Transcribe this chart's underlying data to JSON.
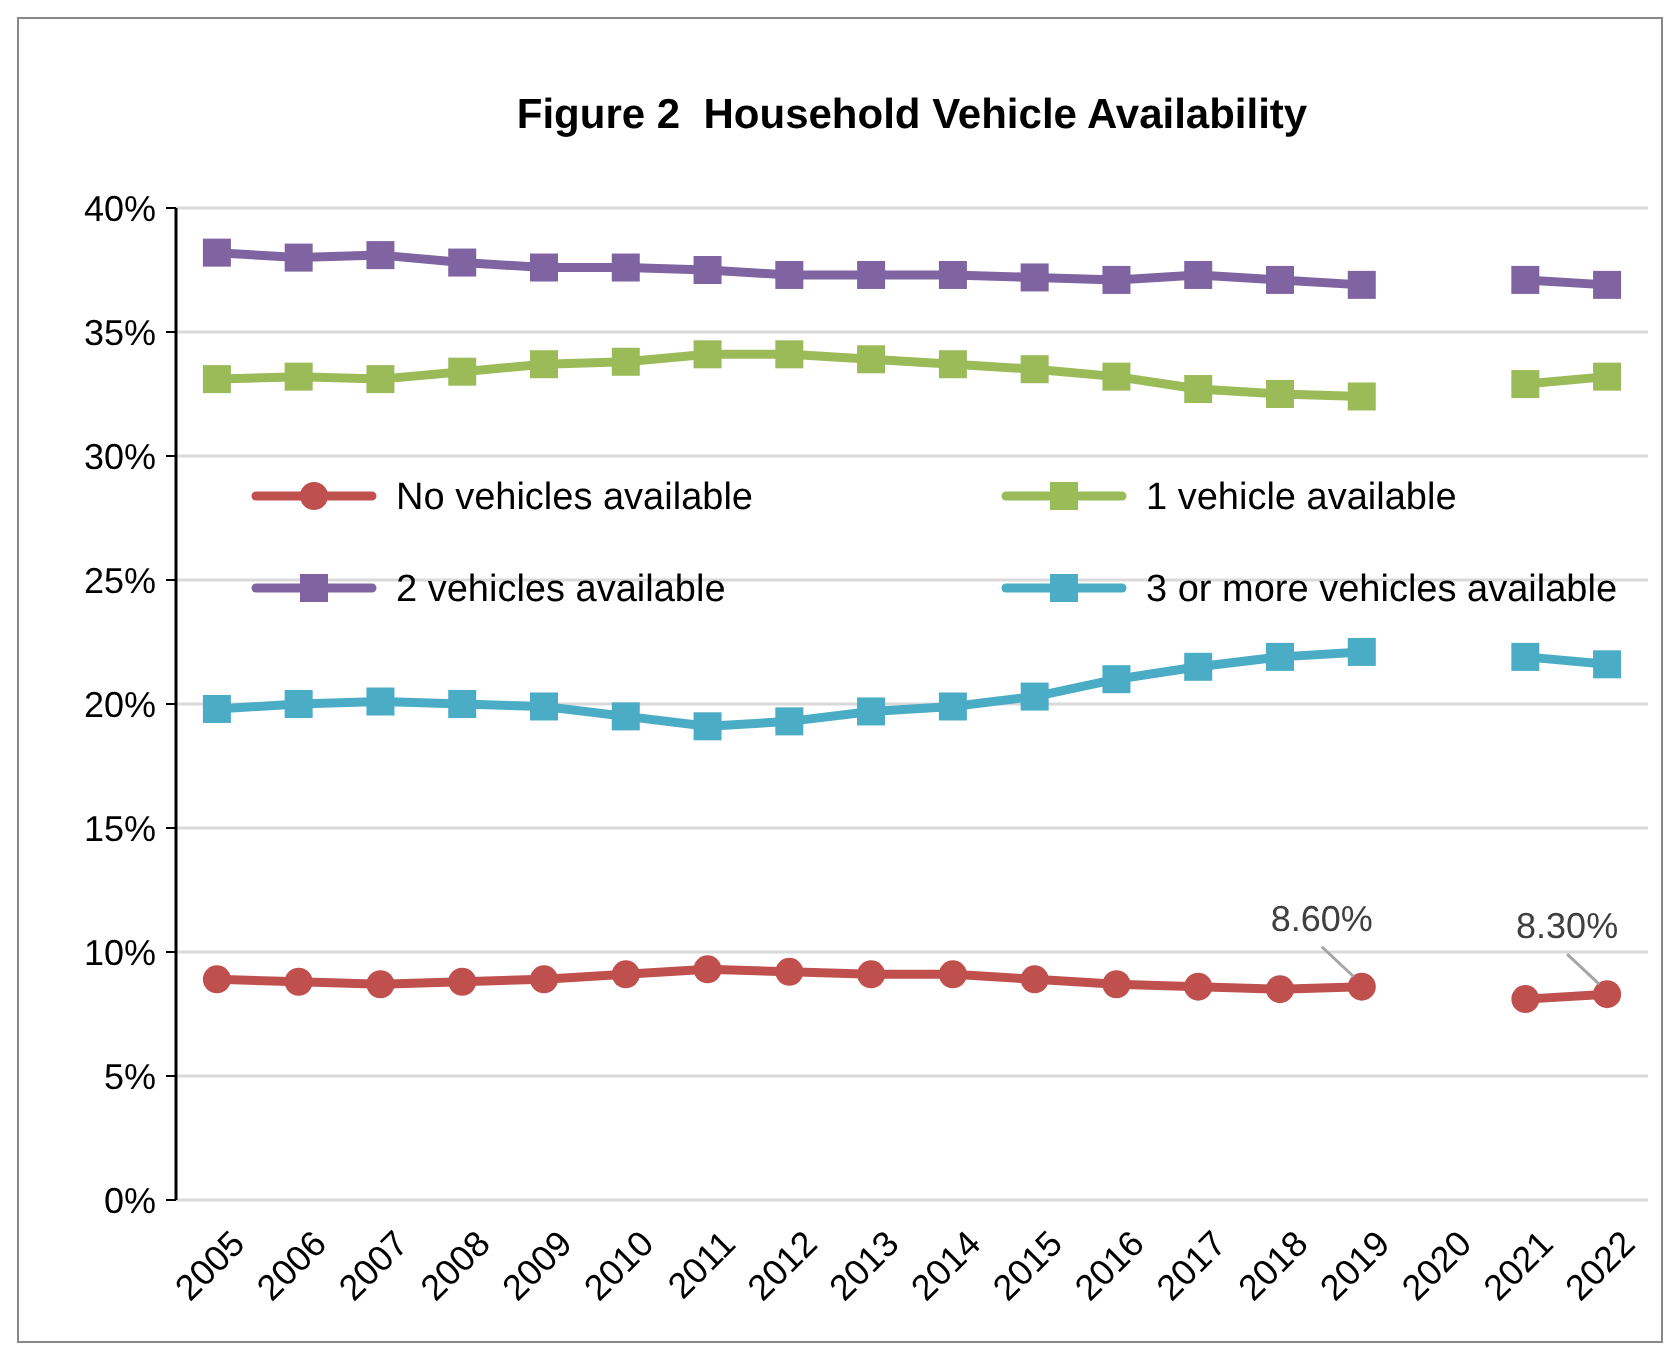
{
  "chart_data": {
    "type": "line",
    "title": "Figure 2  Household Vehicle Availability",
    "categories": [
      "2005",
      "2006",
      "2007",
      "2008",
      "2009",
      "2010",
      "2011",
      "2012",
      "2013",
      "2014",
      "2015",
      "2016",
      "2017",
      "2018",
      "2019",
      "2020",
      "2021",
      "2022"
    ],
    "ylim": [
      0,
      40
    ],
    "yticks": [
      {
        "value": 0,
        "label": "0%"
      },
      {
        "value": 5,
        "label": "5%"
      },
      {
        "value": 10,
        "label": "10%"
      },
      {
        "value": 15,
        "label": "15%"
      },
      {
        "value": 20,
        "label": "20%"
      },
      {
        "value": 25,
        "label": "25%"
      },
      {
        "value": 30,
        "label": "30%"
      },
      {
        "value": 35,
        "label": "35%"
      },
      {
        "value": 40,
        "label": "40%"
      }
    ],
    "grid": "y",
    "legend": "top",
    "line_style": "solid",
    "series": [
      {
        "name": "No vehicles available",
        "color": "#c0504d",
        "marker": "circle",
        "values": [
          8.9,
          8.8,
          8.7,
          8.8,
          8.9,
          9.1,
          9.3,
          9.2,
          9.1,
          9.1,
          8.9,
          8.7,
          8.6,
          8.5,
          8.6,
          null,
          8.1,
          8.3
        ],
        "value_labels": [
          null,
          null,
          null,
          null,
          null,
          null,
          null,
          null,
          null,
          null,
          null,
          null,
          null,
          null,
          "8.60%",
          null,
          null,
          "8.30%"
        ]
      },
      {
        "name": "1 vehicle available",
        "color": "#9bbb59",
        "marker": "square",
        "values": [
          33.1,
          33.2,
          33.1,
          33.4,
          33.7,
          33.8,
          34.1,
          34.1,
          33.9,
          33.7,
          33.5,
          33.2,
          32.7,
          32.5,
          32.4,
          null,
          32.9,
          33.2
        ]
      },
      {
        "name": "2 vehicles available",
        "color": "#8064a2",
        "marker": "square",
        "values": [
          38.2,
          38.0,
          38.1,
          37.8,
          37.6,
          37.6,
          37.5,
          37.3,
          37.3,
          37.3,
          37.2,
          37.1,
          37.3,
          37.1,
          36.9,
          null,
          37.1,
          36.9
        ]
      },
      {
        "name": "3 or more vehicles available",
        "color": "#4bacc6",
        "marker": "square",
        "values": [
          19.8,
          20.0,
          20.1,
          20.0,
          19.9,
          19.5,
          19.1,
          19.3,
          19.7,
          19.9,
          20.3,
          21.0,
          21.5,
          21.9,
          22.1,
          null,
          21.9,
          21.6
        ]
      }
    ]
  }
}
